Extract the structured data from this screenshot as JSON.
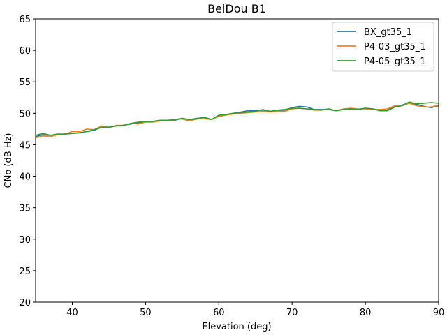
{
  "chart_data": {
    "type": "line",
    "title": "BeiDou B1",
    "xlabel": "Elevation (deg)",
    "ylabel": "CNo (dB Hz)",
    "xlim": [
      35,
      90
    ],
    "ylim": [
      20,
      65
    ],
    "xticks": [
      40,
      50,
      60,
      70,
      80,
      90
    ],
    "yticks": [
      20,
      25,
      30,
      35,
      40,
      45,
      50,
      55,
      60,
      65
    ],
    "legend_position": "top-right",
    "grid": false,
    "x": [
      35,
      36,
      37,
      38,
      39,
      40,
      41,
      42,
      43,
      44,
      45,
      46,
      47,
      48,
      49,
      50,
      51,
      52,
      53,
      54,
      55,
      56,
      57,
      58,
      59,
      60,
      61,
      62,
      63,
      64,
      65,
      66,
      67,
      68,
      69,
      70,
      71,
      72,
      73,
      74,
      75,
      76,
      77,
      78,
      79,
      80,
      81,
      82,
      83,
      84,
      85,
      86,
      87,
      88,
      89,
      90
    ],
    "series": [
      {
        "name": "BX_gt35_1",
        "color": "#1f77b4",
        "values": [
          46.3,
          46.6,
          46.5,
          46.6,
          46.7,
          46.8,
          46.9,
          47.1,
          47.3,
          47.8,
          47.8,
          48.0,
          48.1,
          48.3,
          48.5,
          48.6,
          48.7,
          48.9,
          48.9,
          48.9,
          49.2,
          49.0,
          49.2,
          49.3,
          49.0,
          49.6,
          49.8,
          50.0,
          50.2,
          50.4,
          50.4,
          50.5,
          50.3,
          50.4,
          50.5,
          50.9,
          51.1,
          51.0,
          50.6,
          50.6,
          50.6,
          50.4,
          50.6,
          50.7,
          50.6,
          50.8,
          50.7,
          50.5,
          50.5,
          51.1,
          51.3,
          51.7,
          51.4,
          51.1,
          50.9,
          51.2
        ]
      },
      {
        "name": "P4-03_gt35_1",
        "color": "#ff7f0e",
        "values": [
          46.1,
          46.4,
          46.3,
          46.6,
          46.7,
          47.1,
          47.1,
          47.5,
          47.4,
          48.0,
          47.7,
          48.1,
          48.1,
          48.4,
          48.3,
          48.6,
          48.6,
          48.8,
          48.8,
          49.0,
          49.1,
          48.8,
          49.1,
          49.2,
          49.0,
          49.5,
          49.7,
          49.9,
          50.0,
          50.1,
          50.2,
          50.3,
          50.2,
          50.3,
          50.3,
          50.7,
          50.8,
          50.7,
          50.5,
          50.5,
          50.7,
          50.4,
          50.7,
          50.8,
          50.7,
          50.7,
          50.6,
          50.6,
          50.7,
          51.2,
          51.2,
          51.6,
          51.2,
          51.0,
          51.0,
          51.3
        ]
      },
      {
        "name": "P4-05_gt35_1",
        "color": "#2ca02c",
        "values": [
          46.5,
          46.8,
          46.5,
          46.7,
          46.7,
          46.8,
          46.9,
          47.1,
          47.4,
          47.8,
          47.8,
          48.0,
          48.1,
          48.4,
          48.6,
          48.7,
          48.7,
          48.9,
          48.9,
          49.0,
          49.2,
          49.0,
          49.1,
          49.4,
          49.0,
          49.7,
          49.8,
          50.0,
          50.1,
          50.2,
          50.3,
          50.6,
          50.3,
          50.5,
          50.6,
          50.8,
          50.8,
          50.7,
          50.6,
          50.5,
          50.7,
          50.4,
          50.6,
          50.7,
          50.6,
          50.8,
          50.7,
          50.4,
          50.4,
          51.0,
          51.2,
          51.8,
          51.5,
          51.6,
          51.7,
          51.6
        ]
      }
    ]
  }
}
